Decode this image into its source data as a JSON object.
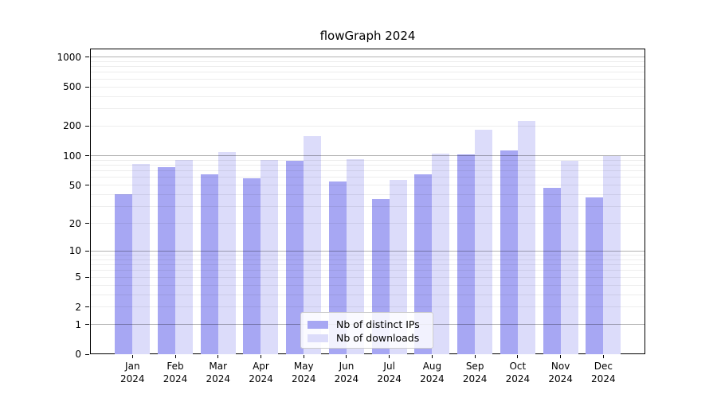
{
  "title": "flowGraph 2024",
  "colors": {
    "bar_distinct_ips": "#a7a7f3",
    "bar_downloads": "#dcdcfa",
    "grid_major": "#b3b3b3",
    "grid_minor": "#ebebeb",
    "axis": "#000000",
    "legend_border": "#cccccc"
  },
  "legend": {
    "items": [
      {
        "label": "Nb of distinct IPs",
        "series_index": 0
      },
      {
        "label": "Nb of downloads",
        "series_index": 1
      }
    ]
  },
  "chart_data": {
    "type": "bar",
    "title": "flowGraph 2024",
    "categories": [
      "Jan 2024",
      "Feb 2024",
      "Mar 2024",
      "Apr 2024",
      "May 2024",
      "Jun 2024",
      "Jul 2024",
      "Aug 2024",
      "Sep 2024",
      "Oct 2024",
      "Nov 2024",
      "Dec 2024"
    ],
    "series": [
      {
        "name": "Nb of distinct IPs",
        "color": "#a7a7f3",
        "values": [
          40,
          76,
          65,
          59,
          89,
          54,
          36,
          64,
          103,
          114,
          47,
          37
        ]
      },
      {
        "name": "Nb of downloads",
        "color": "#dcdcfa",
        "values": [
          83,
          91,
          110,
          91,
          158,
          92,
          57,
          106,
          183,
          224,
          89,
          100
        ]
      }
    ],
    "yscale": "log1p",
    "yticks": [
      0,
      1,
      2,
      5,
      10,
      20,
      50,
      100,
      200,
      500,
      1000
    ],
    "ylim": [
      0,
      1220
    ],
    "grid": true,
    "legend_position": "lower center"
  }
}
